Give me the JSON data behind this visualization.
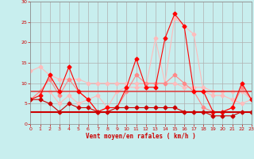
{
  "xlabel": "Vent moyen/en rafales ( km/h )",
  "background_color": "#c8eeee",
  "grid_color": "#b0b0b0",
  "x": [
    0,
    1,
    2,
    3,
    4,
    5,
    6,
    7,
    8,
    9,
    10,
    11,
    12,
    13,
    14,
    15,
    16,
    17,
    18,
    19,
    20,
    21,
    22,
    23
  ],
  "line_smooth": [
    13,
    14,
    12,
    11,
    11,
    11,
    10,
    10,
    10,
    10,
    10,
    10,
    10,
    10,
    10,
    10,
    9,
    9,
    9,
    8,
    8,
    8,
    8,
    6
  ],
  "line_gust": [
    6,
    8,
    8,
    5,
    7,
    5,
    6,
    7,
    4,
    8,
    9,
    9,
    9,
    21,
    10,
    26,
    24,
    22,
    8,
    7,
    7,
    6,
    5,
    6
  ],
  "line_mean": [
    6,
    7,
    12,
    8,
    14,
    8,
    6,
    3,
    4,
    4,
    9,
    16,
    9,
    9,
    21,
    27,
    24,
    8,
    8,
    3,
    3,
    4,
    10,
    6
  ],
  "line_med": [
    6,
    8,
    11,
    7,
    11,
    8,
    6,
    3,
    4,
    4,
    8,
    12,
    10,
    10,
    10,
    12,
    10,
    8,
    4,
    3,
    3,
    4,
    9,
    6
  ],
  "line_flat1": [
    8,
    8,
    8,
    8,
    8,
    8,
    8,
    8,
    8,
    8,
    8,
    8,
    8,
    8,
    8,
    8,
    8,
    8,
    8,
    8,
    8,
    8,
    8,
    8
  ],
  "line_flat2": [
    3,
    3,
    3,
    3,
    3,
    3,
    3,
    3,
    3,
    3,
    3,
    3,
    3,
    3,
    3,
    3,
    3,
    3,
    3,
    3,
    3,
    3,
    3,
    3
  ],
  "line_low": [
    6,
    6,
    5,
    3,
    5,
    4,
    4,
    3,
    3,
    4,
    4,
    4,
    4,
    4,
    4,
    4,
    3,
    3,
    3,
    2,
    2,
    2,
    3,
    3
  ],
  "col_pink_light": "#ffbbbb",
  "col_pink": "#ff8888",
  "col_red": "#ff0000",
  "col_dark_red": "#cc0000",
  "col_flat": "#dd4444",
  "ylim": [
    0,
    30
  ],
  "xlim": [
    0,
    23
  ],
  "yticks": [
    0,
    5,
    10,
    15,
    20,
    25,
    30
  ],
  "xticks": [
    0,
    1,
    2,
    3,
    4,
    5,
    6,
    7,
    8,
    9,
    10,
    11,
    12,
    13,
    14,
    15,
    16,
    17,
    18,
    19,
    20,
    21,
    22,
    23
  ]
}
